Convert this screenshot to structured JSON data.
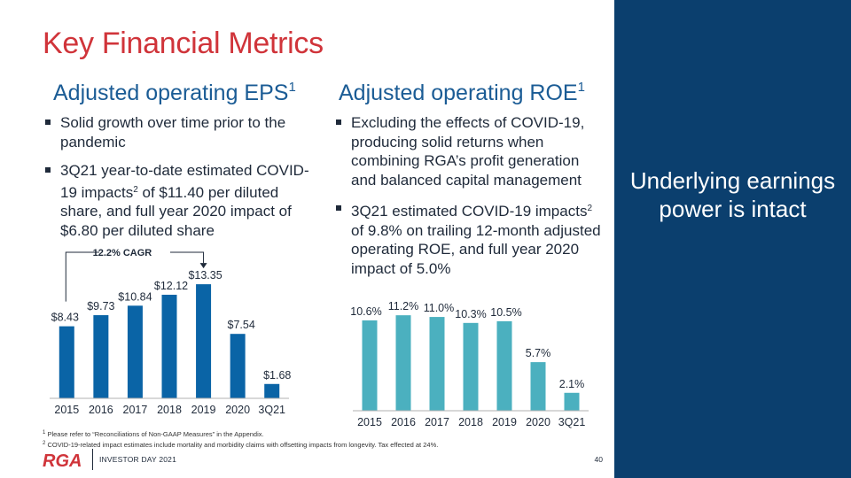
{
  "slide": {
    "title": "Key Financial Metrics",
    "side_message": "Underlying earnings power is intact",
    "event": "INVESTOR DAY 2021",
    "page_number": "40"
  },
  "eps": {
    "heading": "Adjusted operating EPS",
    "heading_note": "1",
    "bullets": [
      {
        "before": "Solid growth over time prior to the pandemic",
        "note": "",
        "after": ""
      },
      {
        "before": "3Q21 year-to-date estimated COVID-19 impacts",
        "note": "2",
        "after": " of $11.40 per diluted share, and full year 2020 impact of $6.80 per diluted share"
      }
    ]
  },
  "roe": {
    "heading": "Adjusted operating ROE",
    "heading_note": "1",
    "bullets": [
      {
        "before": "Excluding the effects of COVID-19, producing solid returns when combining RGA’s profit generation and balanced capital management",
        "note": "",
        "after": ""
      },
      {
        "before": "3Q21 estimated COVID-19 impacts",
        "note": "2",
        "after": " of 9.8% on trailing 12-month adjusted operating ROE, and full year 2020 impact of 5.0%"
      }
    ]
  },
  "footnotes": [
    {
      "num": "1",
      "text": "Please refer to “Reconciliations of Non-GAAP Measures” in the Appendix."
    },
    {
      "num": "2",
      "text": "COVID-19-related impact estimates include mortality and morbidity claims with offsetting impacts from longevity. Tax effected at 24%."
    }
  ],
  "logo_text": "RGA",
  "colors": {
    "title": "#d0343a",
    "heading": "#1b5c95",
    "side_panel": "#0b3f6e",
    "eps_bar": "#0a64a6",
    "roe_bar": "#4bb0bf"
  },
  "chart_data": [
    {
      "type": "bar",
      "categories": [
        "2015",
        "2016",
        "2017",
        "2018",
        "2019",
        "2020",
        "3Q21"
      ],
      "values": [
        8.43,
        9.73,
        10.84,
        12.12,
        13.35,
        7.54,
        1.68
      ],
      "labels": [
        "$8.43",
        "$9.73",
        "$10.84",
        "$12.12",
        "$13.35",
        "$7.54",
        "$1.68"
      ],
      "annotation": "12.2% CAGR",
      "ylim": [
        0,
        14.5
      ]
    },
    {
      "type": "bar",
      "categories": [
        "2015",
        "2016",
        "2017",
        "2018",
        "2019",
        "2020",
        "3Q21"
      ],
      "values": [
        10.6,
        11.2,
        11.0,
        10.3,
        10.5,
        5.7,
        2.1
      ],
      "labels": [
        "10.6%",
        "11.2%",
        "11.0%",
        "10.3%",
        "10.5%",
        "5.7%",
        "2.1%"
      ],
      "ylim": [
        0,
        13.5
      ]
    }
  ]
}
